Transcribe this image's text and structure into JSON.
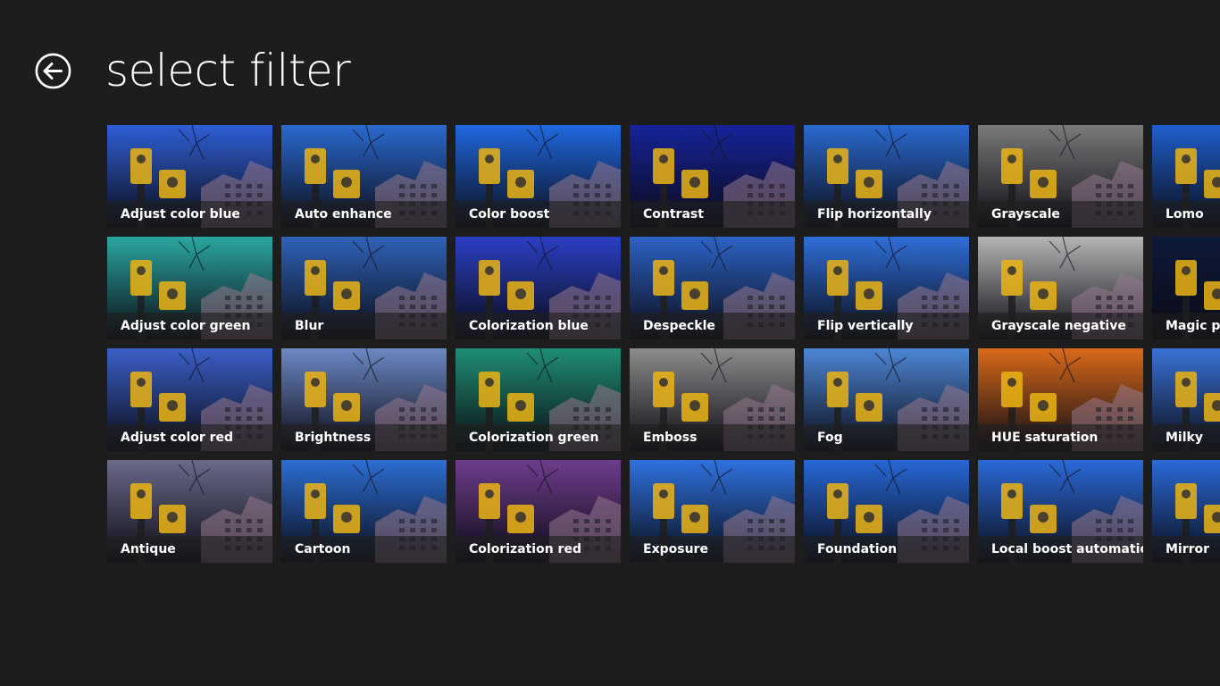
{
  "header": {
    "title": "select filter",
    "back_icon": "arrow-left-circle-icon"
  },
  "filters": [
    {
      "label": "Adjust color blue",
      "tone": "#2f5fd6"
    },
    {
      "label": "Auto enhance",
      "tone": "#2a6ad0"
    },
    {
      "label": "Color boost",
      "tone": "#1f68e0"
    },
    {
      "label": "Contrast",
      "tone": "#16239a"
    },
    {
      "label": "Flip horizontally",
      "tone": "#2a6ad0"
    },
    {
      "label": "Grayscale",
      "tone": "#7a7a7a"
    },
    {
      "label": "Lomo",
      "tone": "#1f5fcf"
    },
    {
      "label": "Adjust color green",
      "tone": "#2aa7a0"
    },
    {
      "label": "Blur",
      "tone": "#2f62b8"
    },
    {
      "label": "Colorization blue",
      "tone": "#2a3fc4"
    },
    {
      "label": "Despeckle",
      "tone": "#2c63c6"
    },
    {
      "label": "Flip vertically",
      "tone": "#2e6ed8"
    },
    {
      "label": "Grayscale negative",
      "tone": "#b5b5b5"
    },
    {
      "label": "Magic pe",
      "tone": "#0e1a3a"
    },
    {
      "label": "Adjust color red",
      "tone": "#3a5fc8"
    },
    {
      "label": "Brightness",
      "tone": "#6d88c4"
    },
    {
      "label": "Colorization green",
      "tone": "#1f8e74"
    },
    {
      "label": "Emboss",
      "tone": "#8c8c8c"
    },
    {
      "label": "Fog",
      "tone": "#4d86d6"
    },
    {
      "label": "HUE saturation",
      "tone": "#d9691a"
    },
    {
      "label": "Milky",
      "tone": "#3a72d8"
    },
    {
      "label": "Antique",
      "tone": "#6a6a8a"
    },
    {
      "label": "Cartoon",
      "tone": "#2c6ed4"
    },
    {
      "label": "Colorization red",
      "tone": "#6e3c8c"
    },
    {
      "label": "Exposure",
      "tone": "#2e72e0"
    },
    {
      "label": "Foundation",
      "tone": "#2667d6"
    },
    {
      "label": "Local boost automatic",
      "tone": "#2a6ad8"
    },
    {
      "label": "Mirror",
      "tone": "#2a6ad8"
    }
  ]
}
